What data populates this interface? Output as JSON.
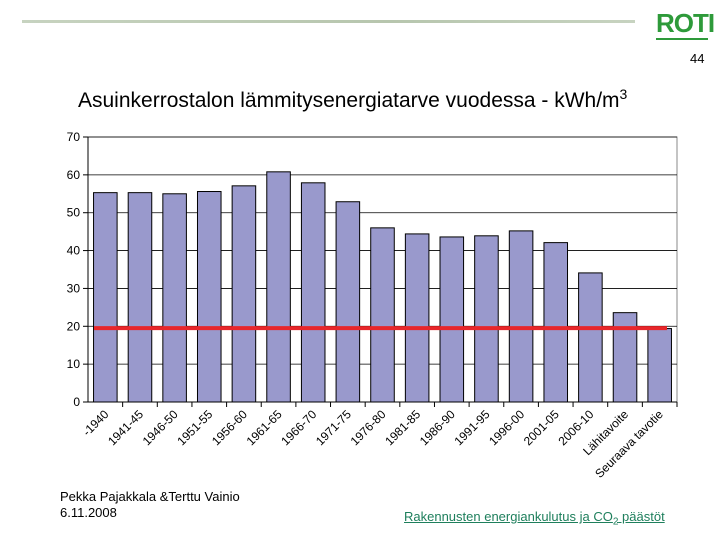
{
  "header": {
    "slide_number": "44",
    "logo_text": "ROTI"
  },
  "title": {
    "main": "Asuinkerrostalon lämmitysenergiatarve vuodessa - kWh/m",
    "superscript": "3"
  },
  "chart_data": {
    "type": "bar",
    "categories": [
      "-1940",
      "1941-45",
      "1946-50",
      "1951-55",
      "1956-60",
      "1961-65",
      "1966-70",
      "1971-75",
      "1976-80",
      "1981-85",
      "1986-90",
      "1991-95",
      "1996-00",
      "2001-05",
      "2006-10",
      "Lähitavoite",
      "Seuraava tavotie"
    ],
    "values": [
      55.3,
      55.3,
      55.0,
      55.6,
      57.1,
      60.8,
      57.9,
      52.9,
      46.0,
      44.4,
      43.6,
      43.9,
      45.2,
      42.1,
      34.1,
      23.6,
      19.4
    ],
    "ylim": [
      0,
      70
    ],
    "yticks": [
      0,
      10,
      20,
      30,
      40,
      50,
      60,
      70
    ],
    "reference_line": 19.5,
    "grid": true,
    "bar_color": "#9999cc",
    "line_color": "#e8262a"
  },
  "footer": {
    "authors": "Pekka Pajakkala &Terttu Vainio",
    "date": "6.11.2008",
    "link_main": "Rakennusten energiankulutus ja CO",
    "link_sub": "2",
    "link_tail": " päästöt"
  }
}
